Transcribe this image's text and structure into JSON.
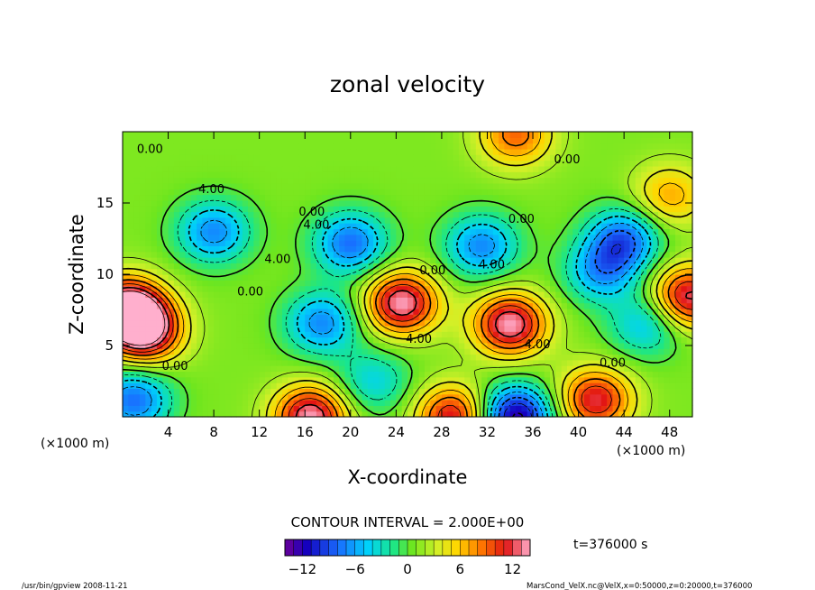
{
  "chart_data": {
    "type": "heatmap",
    "title": "zonal velocity",
    "xlabel": "X-coordinate",
    "ylabel": "Z-coordinate",
    "x_unit_left": "(×1000 m)",
    "x_unit_right": "(×1000 m)",
    "xlim": [
      0,
      50
    ],
    "ylim": [
      0,
      20
    ],
    "x_ticks": [
      4,
      8,
      12,
      16,
      20,
      24,
      28,
      32,
      36,
      40,
      44,
      48
    ],
    "y_ticks": [
      5,
      10,
      15
    ],
    "contour_interval_text": "CONTOUR INTERVAL = 2.000E+00",
    "time_text": "t=376000 s",
    "colorbar": {
      "min": -14,
      "max": 14,
      "ticks": [
        -12,
        -6,
        0,
        6,
        12
      ]
    },
    "contour_labels": [
      {
        "text": "0.00",
        "x": 2.4,
        "z": 18.5
      },
      {
        "text": "4.00",
        "x": 7.8,
        "z": 15.7
      },
      {
        "text": "0.00",
        "x": 16.6,
        "z": 14.1
      },
      {
        "text": "4.00",
        "x": 17.0,
        "z": 13.2
      },
      {
        "text": "0.00",
        "x": 35.0,
        "z": 13.6
      },
      {
        "text": "0.00",
        "x": 39.0,
        "z": 17.8
      },
      {
        "text": "4.00",
        "x": 13.6,
        "z": 10.8
      },
      {
        "text": "0.00",
        "x": 11.2,
        "z": 8.5
      },
      {
        "text": "0.00",
        "x": 27.2,
        "z": 10.0
      },
      {
        "text": "4.00",
        "x": 32.4,
        "z": 10.4
      },
      {
        "text": "4.00",
        "x": 26.0,
        "z": 5.2
      },
      {
        "text": "4.00",
        "x": 36.4,
        "z": 4.8
      },
      {
        "text": "0.00",
        "x": 4.6,
        "z": 3.3
      },
      {
        "text": "0.00",
        "x": 43.0,
        "z": 3.5
      }
    ],
    "field_features": [
      {
        "x": 0.4,
        "z": 7.5,
        "amp": 16
      },
      {
        "x": 2.0,
        "z": 6.0,
        "amp": 12
      },
      {
        "x": 24.5,
        "z": 8.0,
        "amp": 13
      },
      {
        "x": 34.0,
        "z": 6.5,
        "amp": 13
      },
      {
        "x": 49.6,
        "z": 8.4,
        "amp": 12
      },
      {
        "x": 16.5,
        "z": 0.0,
        "amp": 13
      },
      {
        "x": 29.0,
        "z": 0.0,
        "amp": 11
      },
      {
        "x": 41.5,
        "z": 1.2,
        "amp": 11
      },
      {
        "x": 34.5,
        "z": 0.0,
        "amp": -14
      },
      {
        "x": 1.0,
        "z": 1.2,
        "amp": -9
      },
      {
        "x": 17.5,
        "z": 6.6,
        "amp": -8
      },
      {
        "x": 8.0,
        "z": 13.0,
        "amp": -8
      },
      {
        "x": 20.0,
        "z": 12.2,
        "amp": -9
      },
      {
        "x": 31.5,
        "z": 12.0,
        "amp": -8
      },
      {
        "x": 44.0,
        "z": 12.5,
        "amp": -9
      },
      {
        "x": 42.0,
        "z": 10.2,
        "amp": -7
      },
      {
        "x": 34.5,
        "z": 19.8,
        "amp": 8
      },
      {
        "x": 48.0,
        "z": 15.5,
        "amp": 6
      },
      {
        "x": 22.0,
        "z": 2.5,
        "amp": -5
      },
      {
        "x": 46.0,
        "z": 6.5,
        "amp": -6
      }
    ]
  },
  "footer": {
    "left": "/usr/bin/gpview   2008-11-21",
    "right": "MarsCond_VelX.nc@VelX,x=0:50000,z=0:20000,t=376000"
  }
}
